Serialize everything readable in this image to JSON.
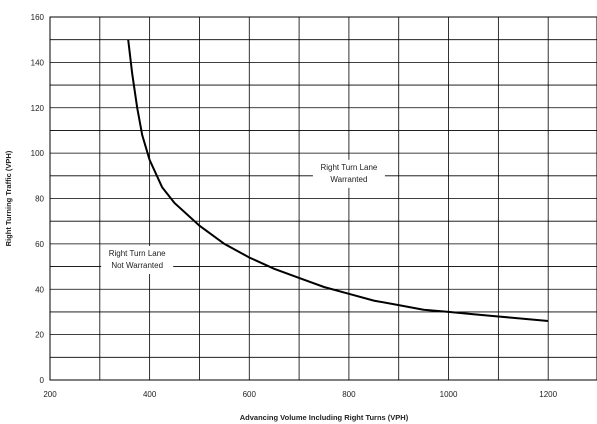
{
  "chart_data": {
    "type": "line",
    "title": "",
    "xlabel": "Advancing Volume Including Right Turns (VPH)",
    "ylabel": "Right Turning Traffic (VPH)",
    "xlim": [
      200,
      1300
    ],
    "ylim": [
      0,
      160
    ],
    "x_ticks": [
      "200",
      "400",
      "600",
      "800",
      "1000",
      "1200"
    ],
    "y_ticks": [
      "0",
      "20",
      "40",
      "60",
      "80",
      "100",
      "120",
      "140",
      "160"
    ],
    "grid": true,
    "series": [
      {
        "color": "#000000",
        "x": [
          357,
          365,
          375,
          385,
          400,
          425,
          450,
          500,
          550,
          600,
          650,
          700,
          750,
          800,
          850,
          900,
          950,
          1000,
          1050,
          1100,
          1150,
          1200
        ],
        "y": [
          150,
          135,
          120,
          108,
          97,
          85,
          78,
          68,
          60,
          54,
          49,
          45,
          41,
          38,
          35,
          33,
          31,
          30,
          29,
          28,
          27,
          26
        ]
      }
    ],
    "annotations": [
      {
        "lines": [
          "Right Turn Lane",
          "Warranted"
        ],
        "x": 800,
        "y": 90
      },
      {
        "lines": [
          "Right Turn Lane",
          "Not Warranted"
        ],
        "x": 375,
        "y": 52
      }
    ]
  }
}
